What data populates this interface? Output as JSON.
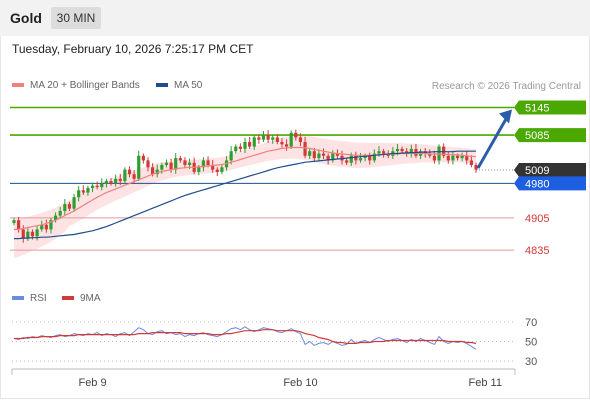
{
  "header": {
    "title": "Gold",
    "interval": "30 MIN"
  },
  "datetime": "Tuesday, February 10, 2026 7:25:17 PM CET",
  "legend": {
    "ma20_bb": "MA 20 + Bollinger Bands",
    "ma50": "MA 50",
    "rsi": "RSI",
    "ma9": "9MA",
    "credit": "Research © 2026 Trading Central"
  },
  "colors": {
    "up": "#2f9e2f",
    "down": "#d23a3a",
    "ma20": "#f08080",
    "ma50": "#1e4e8c",
    "bands": "#fde3e3",
    "green_level": "#4aa800",
    "red_level": "#d23a3a",
    "support_blue": "#1e5ee0",
    "last_price": "#333333",
    "rsi": "#6a8be0",
    "ma9": "#d23a3a",
    "arrow": "#2a5caa"
  },
  "chart_data": [
    {
      "type": "candlestick",
      "title": "Gold",
      "y_range": [
        4770,
        5170
      ],
      "levels": [
        {
          "value": 5145,
          "label": "5145",
          "kind": "resistance"
        },
        {
          "value": 5085,
          "label": "5085",
          "kind": "resistance"
        },
        {
          "value": 5009,
          "label": "5009",
          "kind": "last"
        },
        {
          "value": 4980,
          "label": "4980",
          "kind": "support-pivot"
        },
        {
          "value": 4905,
          "label": "4905",
          "kind": "support"
        },
        {
          "value": 4835,
          "label": "4835",
          "kind": "support"
        }
      ],
      "x_ticks": [
        "Feb 9",
        "Feb 10",
        "Feb 11"
      ],
      "x_tick_index": [
        17,
        62,
        102
      ],
      "arrow": {
        "from": 5009,
        "to": 5145
      },
      "close": [
        4900,
        4880,
        4860,
        4875,
        4865,
        4880,
        4890,
        4880,
        4900,
        4910,
        4920,
        4935,
        4925,
        4950,
        4965,
        4960,
        4970,
        4975,
        4972,
        4980,
        4985,
        4980,
        4990,
        4985,
        5010,
        5000,
        4990,
        5040,
        5030,
        5015,
        5000,
        5010,
        5020,
        5025,
        5010,
        5035,
        5030,
        5020,
        5025,
        5005,
        5015,
        5030,
        5020,
        5010,
        5005,
        5015,
        5030,
        5050,
        5060,
        5055,
        5070,
        5060,
        5080,
        5075,
        5085,
        5075,
        5080,
        5070,
        5065,
        5060,
        5090,
        5080,
        5070,
        5040,
        5050,
        5035,
        5045,
        5040,
        5030,
        5045,
        5040,
        5030,
        5025,
        5040,
        5030,
        5035,
        5040,
        5030,
        5045,
        5050,
        5045,
        5040,
        5050,
        5055,
        5050,
        5045,
        5055,
        5040,
        5050,
        5045,
        5040,
        5030,
        5060,
        5040,
        5030,
        5040,
        5035,
        5040,
        5030,
        5020,
        5010
      ],
      "ma20": [
        4880,
        4880,
        4882,
        4884,
        4886,
        4888,
        4890,
        4893,
        4896,
        4900,
        4905,
        4910,
        4915,
        4920,
        4926,
        4932,
        4938,
        4944,
        4950,
        4955,
        4960,
        4964,
        4968,
        4972,
        4976,
        4980,
        4984,
        4988,
        4992,
        4996,
        5000,
        5003,
        5006,
        5008,
        5010,
        5012,
        5013,
        5014,
        5015,
        5015,
        5016,
        5017,
        5018,
        5019,
        5020,
        5021,
        5023,
        5026,
        5029,
        5032,
        5035,
        5038,
        5041,
        5044,
        5047,
        5050,
        5052,
        5054,
        5056,
        5057,
        5058,
        5058,
        5058,
        5057,
        5056,
        5054,
        5052,
        5050,
        5048,
        5046,
        5045,
        5044,
        5043,
        5042,
        5041,
        5041,
        5041,
        5041,
        5042,
        5042,
        5043,
        5043,
        5044,
        5044,
        5045,
        5045,
        5045,
        5045,
        5045,
        5045,
        5044,
        5044,
        5044,
        5043,
        5043,
        5042,
        5042,
        5041,
        5040,
        5039,
        5038
      ],
      "ma50": [
        4860,
        4860,
        4861,
        4861,
        4862,
        4862,
        4863,
        4863,
        4864,
        4865,
        4866,
        4867,
        4868,
        4869,
        4871,
        4873,
        4875,
        4877,
        4880,
        4883,
        4886,
        4890,
        4894,
        4898,
        4902,
        4906,
        4910,
        4914,
        4918,
        4922,
        4926,
        4930,
        4934,
        4938,
        4942,
        4946,
        4950,
        4954,
        4957,
        4960,
        4963,
        4966,
        4969,
        4972,
        4975,
        4978,
        4981,
        4984,
        4987,
        4990,
        4993,
        4996,
        4999,
        5002,
        5005,
        5008,
        5011,
        5014,
        5016,
        5018,
        5020,
        5022,
        5024,
        5026,
        5027,
        5028,
        5029,
        5030,
        5031,
        5032,
        5033,
        5034,
        5035,
        5036,
        5037,
        5038,
        5039,
        5040,
        5041,
        5042,
        5043,
        5044,
        5045,
        5045,
        5046,
        5046,
        5047,
        5047,
        5048,
        5048,
        5048,
        5049,
        5049,
        5049,
        5049,
        5049,
        5050,
        5050,
        5050,
        5050,
        5050
      ]
    },
    {
      "type": "line",
      "title": "RSI",
      "y_range": [
        25,
        78
      ],
      "y_ticks": [
        70,
        50,
        30
      ],
      "rsi": [
        53,
        52,
        54,
        53,
        55,
        54,
        56,
        55,
        54,
        56,
        57,
        55,
        56,
        58,
        57,
        56,
        58,
        57,
        59,
        56,
        58,
        57,
        55,
        58,
        59,
        56,
        60,
        64,
        62,
        58,
        57,
        60,
        61,
        58,
        59,
        57,
        58,
        55,
        57,
        56,
        58,
        59,
        57,
        56,
        55,
        57,
        60,
        63,
        64,
        62,
        65,
        62,
        60,
        62,
        64,
        63,
        62,
        60,
        59,
        61,
        63,
        60,
        58,
        47,
        50,
        46,
        48,
        49,
        47,
        50,
        48,
        46,
        47,
        52,
        48,
        50,
        51,
        49,
        52,
        54,
        52,
        50,
        52,
        53,
        51,
        49,
        52,
        50,
        53,
        51,
        49,
        47,
        55,
        50,
        48,
        50,
        49,
        50,
        48,
        45,
        42
      ],
      "ma9": [
        53,
        53,
        53,
        54,
        54,
        54,
        55,
        55,
        55,
        55,
        56,
        56,
        56,
        56,
        57,
        57,
        57,
        57,
        57,
        57,
        57,
        57,
        57,
        57,
        57,
        57,
        57,
        58,
        58,
        58,
        59,
        59,
        59,
        59,
        59,
        59,
        59,
        58,
        58,
        58,
        58,
        58,
        58,
        57,
        57,
        57,
        58,
        58,
        59,
        60,
        61,
        61,
        61,
        61,
        62,
        62,
        62,
        61,
        61,
        61,
        61,
        61,
        60,
        58,
        57,
        56,
        54,
        53,
        52,
        50,
        49,
        49,
        48,
        48,
        48,
        49,
        49,
        49,
        50,
        50,
        50,
        51,
        51,
        51,
        51,
        51,
        51,
        51,
        51,
        51,
        51,
        51,
        51,
        51,
        50,
        50,
        50,
        50,
        49,
        49,
        48
      ]
    }
  ]
}
